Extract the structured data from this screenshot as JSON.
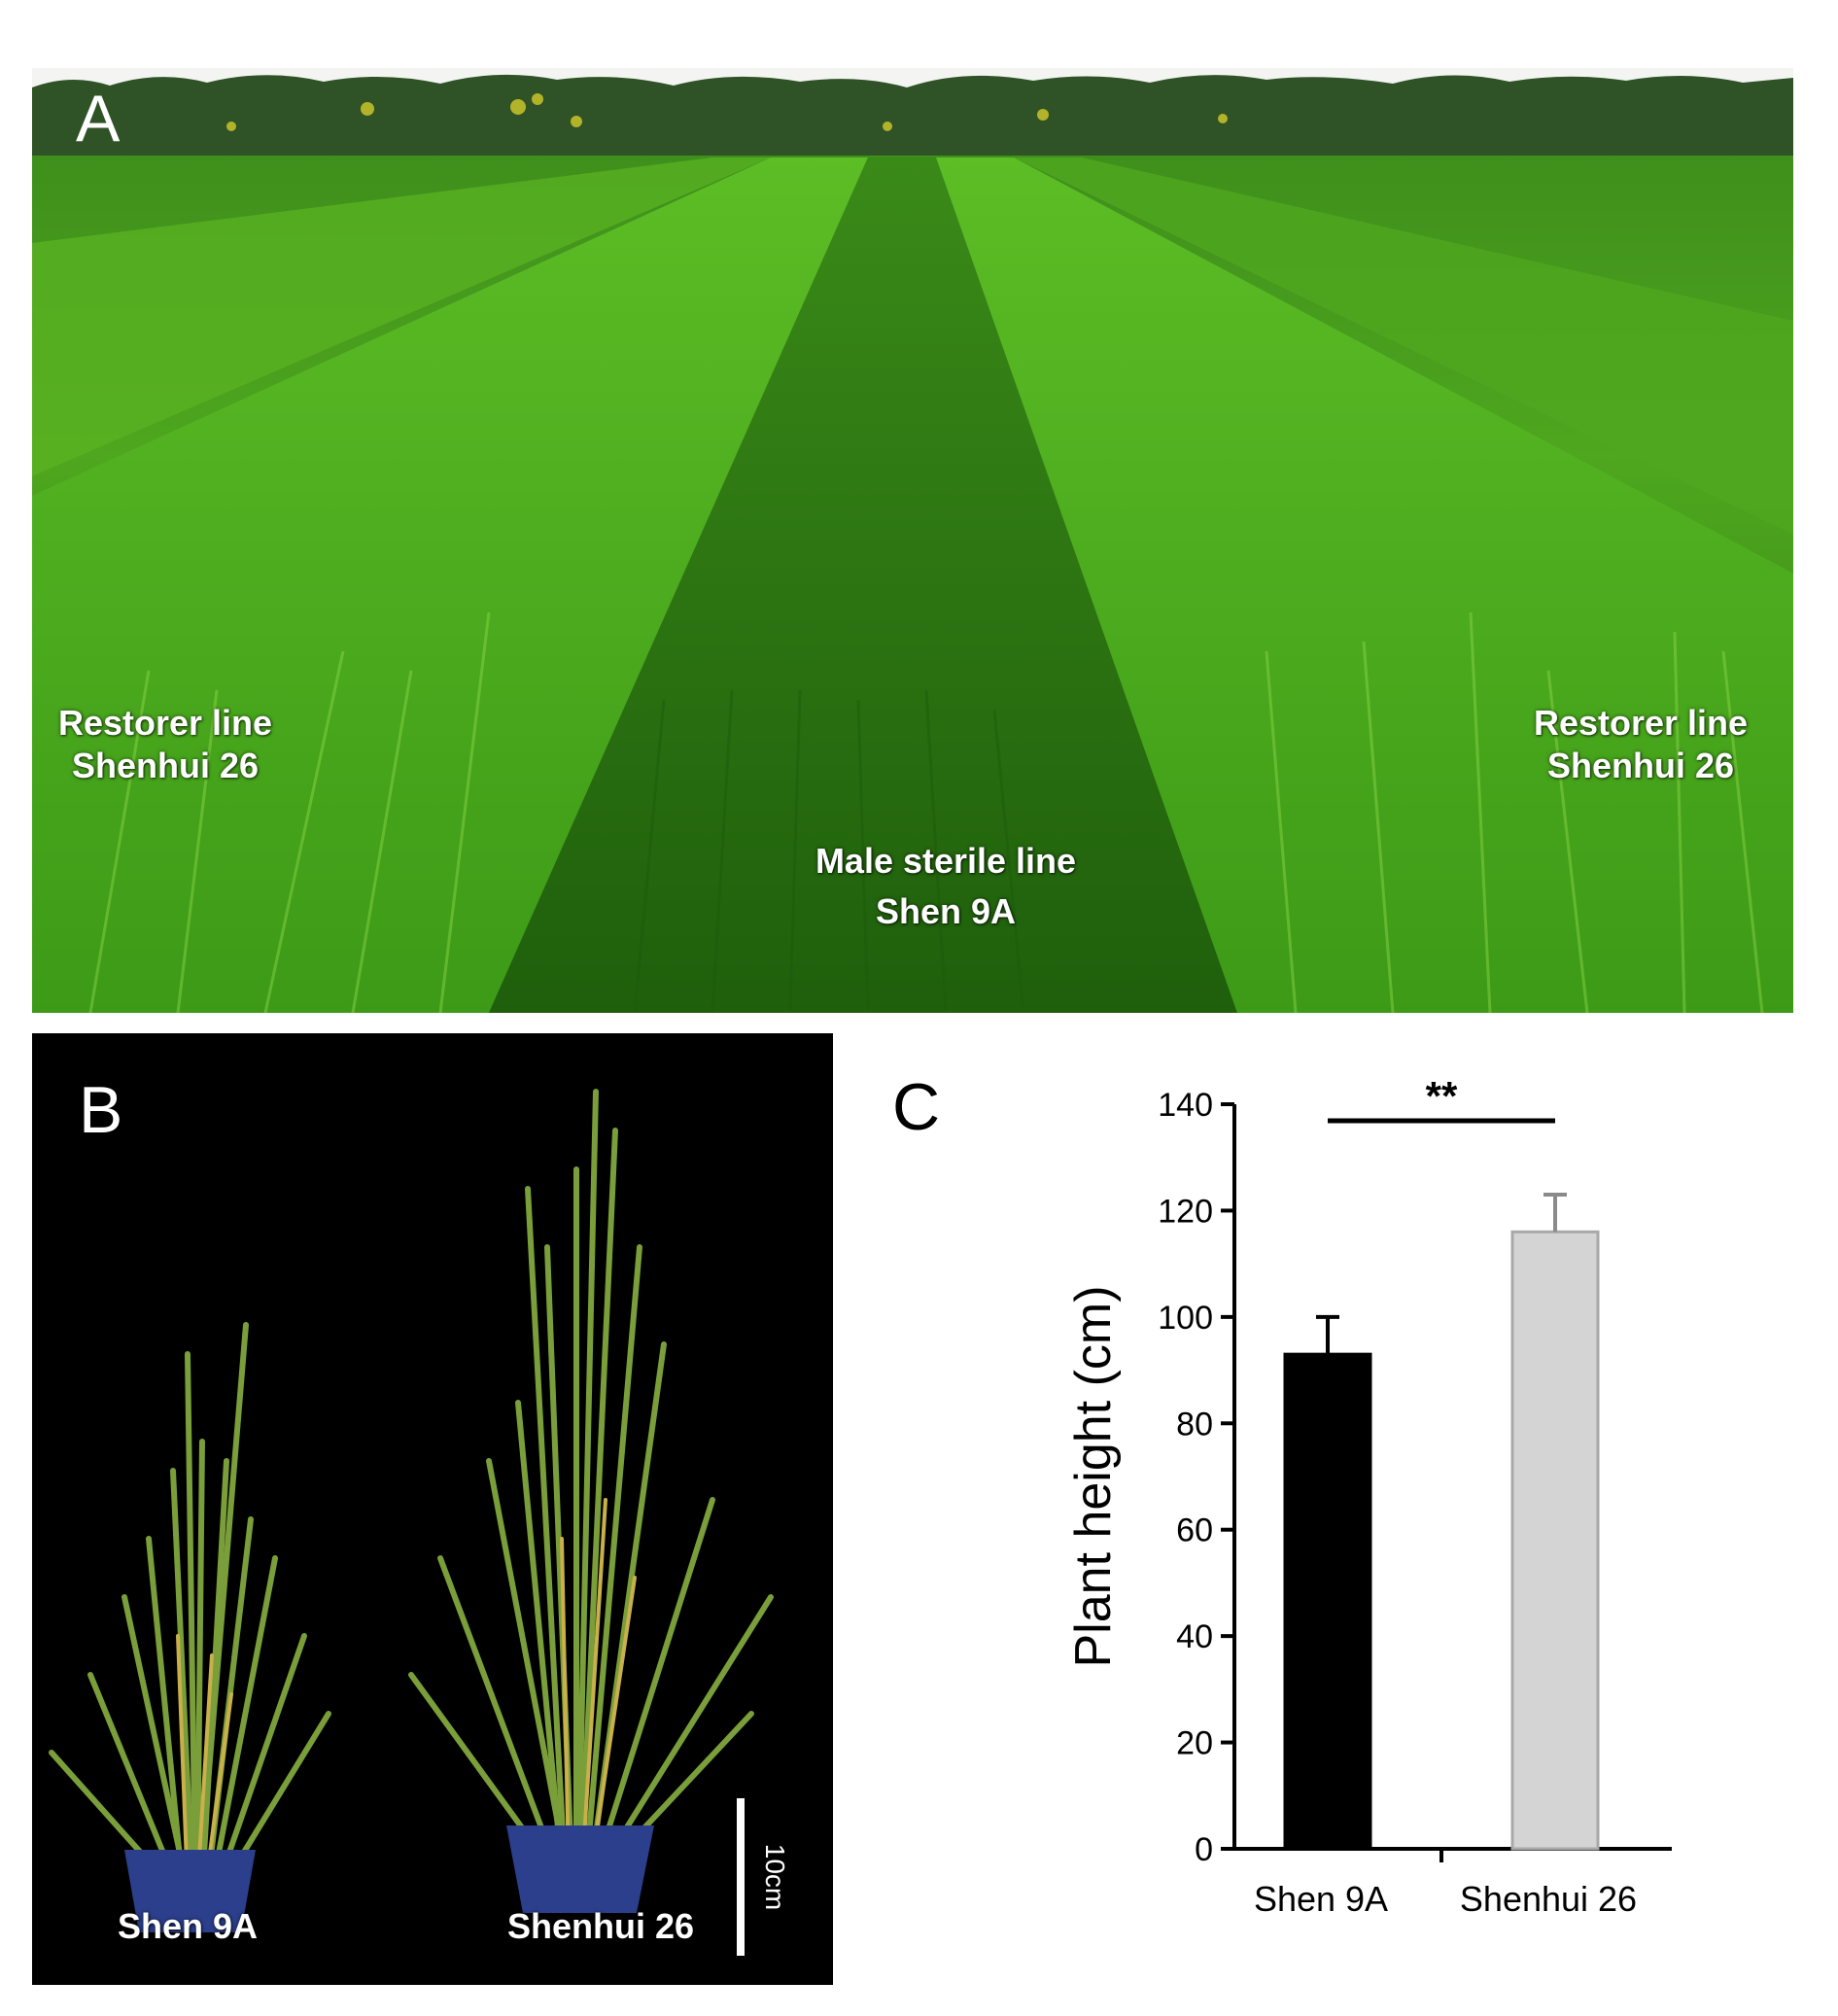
{
  "panel_a": {
    "letter": "A",
    "labels": {
      "left_line1": "Restorer line",
      "left_line2": "Shenhui 26",
      "center_line1": "Male sterile line",
      "center_line2": "Shen 9A",
      "right_line1": "Restorer line",
      "right_line2": "Shenhui 26"
    }
  },
  "panel_b": {
    "letter": "B",
    "plant_left_label": "Shen 9A",
    "plant_right_label": "Shenhui 26",
    "scale_bar_label": "10cm"
  },
  "panel_c": {
    "letter": "C",
    "significance": "**"
  },
  "colors": {
    "sky": "#f4f5f3",
    "trees": "#2f5226",
    "grass_light": "#57b51f",
    "grass_dark": "#2f7a14",
    "pot": "#2b3f8c",
    "bar_shen9a": "#000000",
    "bar_shenhui26": "#d4d4d4"
  },
  "chart_data": {
    "type": "bar",
    "categories": [
      "Shen 9A",
      "Shenhui 26"
    ],
    "values": [
      93,
      116
    ],
    "errors": [
      7,
      7
    ],
    "ylabel": "Plant height (cm)",
    "ylim": [
      0,
      140
    ],
    "yticks": [
      0,
      20,
      40,
      60,
      80,
      100,
      120,
      140
    ],
    "grid": false,
    "bar_colors": [
      "#000000",
      "#d4d4d4"
    ]
  }
}
